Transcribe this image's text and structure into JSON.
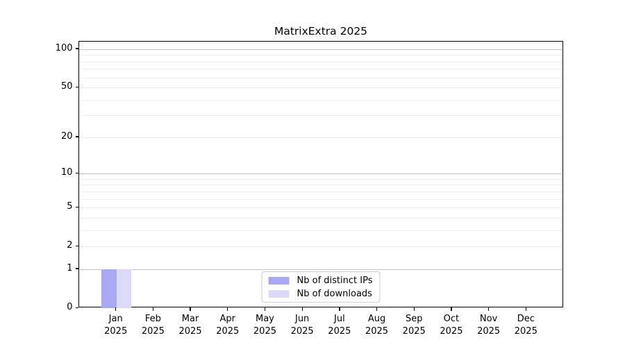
{
  "chart_data": {
    "type": "bar",
    "title": "MatrixExtra 2025",
    "categories": [
      "Jan",
      "Feb",
      "Mar",
      "Apr",
      "May",
      "Jun",
      "Jul",
      "Aug",
      "Sep",
      "Oct",
      "Nov",
      "Dec"
    ],
    "category_year": "2025",
    "series": [
      {
        "name": "Nb of distinct IPs",
        "color": "#a8a8f4",
        "values": [
          1,
          0,
          0,
          0,
          0,
          0,
          0,
          0,
          0,
          0,
          0,
          0
        ]
      },
      {
        "name": "Nb of downloads",
        "color": "#dadaf8",
        "values": [
          1,
          0,
          0,
          0,
          0,
          0,
          0,
          0,
          0,
          0,
          0,
          0
        ]
      }
    ],
    "y_axis": {
      "scale": "log10(1+v)",
      "tick_values": [
        100,
        50,
        20,
        10,
        5,
        2,
        1,
        0
      ],
      "major_gridlines": [
        100,
        10,
        1
      ],
      "minor_gridlines": [
        2,
        3,
        4,
        5,
        6,
        7,
        8,
        9,
        20,
        30,
        40,
        50,
        60,
        70,
        80,
        90
      ],
      "ymax": 114.7
    },
    "legend": {
      "location": "lower center",
      "entries": [
        "Nb of distinct IPs",
        "Nb of downloads"
      ]
    },
    "style": {
      "major_grid_color": "#c4c4c4",
      "minor_grid_color": "#ececec",
      "spine_color": "#000000",
      "background": "#ffffff",
      "legend_border": "#cccccc",
      "text_color": "#000000"
    }
  }
}
